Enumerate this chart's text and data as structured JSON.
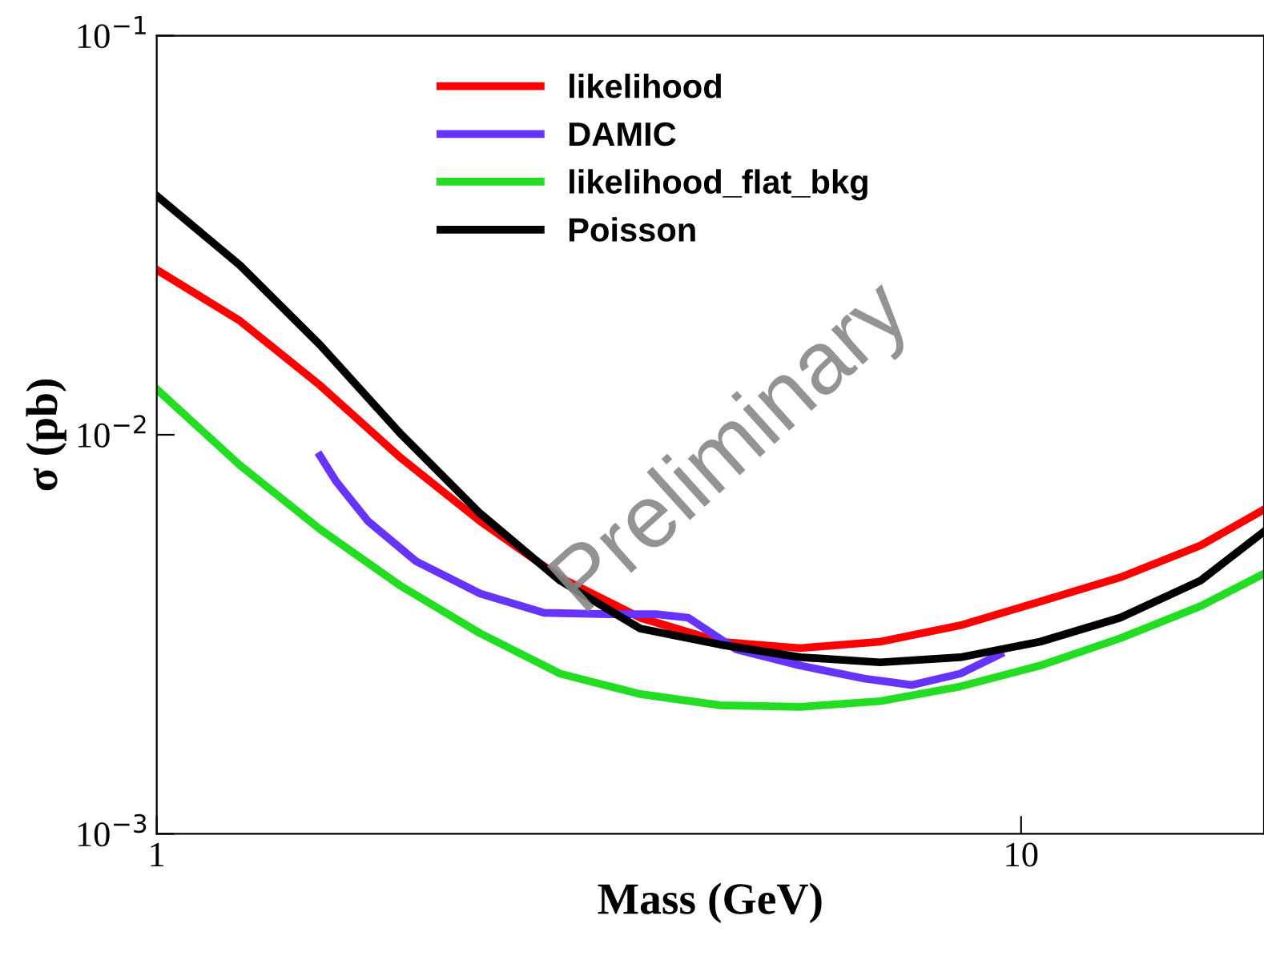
{
  "chart_data": {
    "type": "line",
    "xlabel": "Mass (GeV)",
    "ylabel": "σ (pb)",
    "log": "xy",
    "xlim": [
      1,
      19.1
    ],
    "ylim": [
      0.001,
      0.1
    ],
    "xticks": [
      1,
      10
    ],
    "yticks": [
      {
        "value": 0.001,
        "label": "10$^{−3}$"
      },
      {
        "value": 0.01,
        "label": "10$^{−2}$"
      },
      {
        "value": 0.1,
        "label": "10$^{−1}$"
      }
    ],
    "grid": false,
    "legend": "top",
    "marker": "none",
    "line_style": "solid",
    "annotations": [
      "Preliminary"
    ],
    "series": [
      {
        "name": "likelihood",
        "color": "#ff0000",
        "x": [
          1.0,
          1.248,
          1.545,
          1.912,
          2.367,
          2.929,
          3.625,
          4.486,
          5.553,
          6.87,
          8.505,
          10.52,
          13.02,
          16.13,
          19.04
        ],
        "values": [
          0.0259,
          0.0193,
          0.0133,
          0.00878,
          0.00607,
          0.00439,
          0.00348,
          0.00303,
          0.00292,
          0.00303,
          0.00333,
          0.00382,
          0.00439,
          0.00528,
          0.00647
        ]
      },
      {
        "name": "DAMIC",
        "color": "#6633ff",
        "x": [
          1.545,
          1.612,
          1.756,
          1.995,
          2.367,
          2.806,
          3.329,
          3.782,
          4.12,
          4.681,
          5.553,
          6.584,
          7.48,
          8.505,
          9.46
        ],
        "values": [
          0.00886,
          0.00765,
          0.00607,
          0.00482,
          0.004,
          0.00358,
          0.00355,
          0.00355,
          0.00348,
          0.0029,
          0.00264,
          0.00245,
          0.00236,
          0.00252,
          0.00282
        ]
      },
      {
        "name": "likelihood_flat_bkg",
        "color": "#22dd22",
        "x": [
          1.0,
          1.248,
          1.545,
          1.912,
          2.367,
          2.929,
          3.625,
          4.486,
          5.553,
          6.87,
          8.505,
          10.52,
          13.02,
          16.13,
          19.04
        ],
        "values": [
          0.013,
          0.00839,
          0.0058,
          0.00419,
          0.00318,
          0.00252,
          0.00224,
          0.0021,
          0.00208,
          0.00215,
          0.00234,
          0.00264,
          0.00309,
          0.00372,
          0.00447
        ]
      },
      {
        "name": "Poisson",
        "color": "#000000",
        "x": [
          1.0,
          1.248,
          1.545,
          1.912,
          2.367,
          2.929,
          3.625,
          4.486,
          5.553,
          6.87,
          8.505,
          10.52,
          13.02,
          16.13,
          19.04
        ],
        "values": [
          0.0397,
          0.0266,
          0.0168,
          0.01009,
          0.00635,
          0.00431,
          0.00327,
          0.00298,
          0.00277,
          0.00269,
          0.00277,
          0.00303,
          0.00348,
          0.00431,
          0.00569
        ]
      }
    ]
  }
}
